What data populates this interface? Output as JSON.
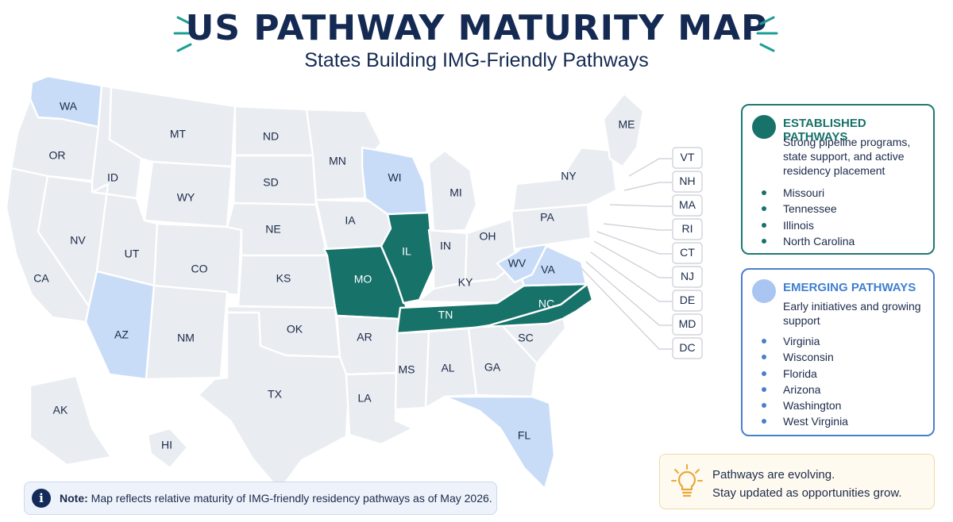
{
  "title": "US PATHWAY MATURITY MAP",
  "subtitle": "States Building IMG-Friendly Pathways",
  "colors": {
    "established": "#17726a",
    "emerging": "#c9dcf7",
    "default": "#e9ecf0",
    "border": "#ffffff"
  },
  "states": {
    "WA": {
      "label": "WA",
      "status": "emerging"
    },
    "OR": {
      "label": "OR",
      "status": "default"
    },
    "CA": {
      "label": "CA",
      "status": "default"
    },
    "NV": {
      "label": "NV",
      "status": "default"
    },
    "ID": {
      "label": "ID",
      "status": "default"
    },
    "MT": {
      "label": "MT",
      "status": "default"
    },
    "WY": {
      "label": "WY",
      "status": "default"
    },
    "UT": {
      "label": "UT",
      "status": "default"
    },
    "AZ": {
      "label": "AZ",
      "status": "emerging"
    },
    "CO": {
      "label": "CO",
      "status": "default"
    },
    "NM": {
      "label": "NM",
      "status": "default"
    },
    "ND": {
      "label": "ND",
      "status": "default"
    },
    "SD": {
      "label": "SD",
      "status": "default"
    },
    "NE": {
      "label": "NE",
      "status": "default"
    },
    "KS": {
      "label": "KS",
      "status": "default"
    },
    "OK": {
      "label": "OK",
      "status": "default"
    },
    "TX": {
      "label": "TX",
      "status": "default"
    },
    "MN": {
      "label": "MN",
      "status": "default"
    },
    "IA": {
      "label": "IA",
      "status": "default"
    },
    "MO": {
      "label": "MO",
      "status": "established"
    },
    "AR": {
      "label": "AR",
      "status": "default"
    },
    "LA": {
      "label": "LA",
      "status": "default"
    },
    "WI": {
      "label": "WI",
      "status": "emerging"
    },
    "IL": {
      "label": "IL",
      "status": "established"
    },
    "MI": {
      "label": "MI",
      "status": "default"
    },
    "IN": {
      "label": "IN",
      "status": "default"
    },
    "OH": {
      "label": "OH",
      "status": "default"
    },
    "KY": {
      "label": "KY",
      "status": "default"
    },
    "TN": {
      "label": "TN",
      "status": "established"
    },
    "MS": {
      "label": "MS",
      "status": "default"
    },
    "AL": {
      "label": "AL",
      "status": "default"
    },
    "GA": {
      "label": "GA",
      "status": "default"
    },
    "FL": {
      "label": "FL",
      "status": "emerging"
    },
    "SC": {
      "label": "SC",
      "status": "default"
    },
    "NC": {
      "label": "NC",
      "status": "established"
    },
    "VA": {
      "label": "VA",
      "status": "emerging"
    },
    "WV": {
      "label": "WV",
      "status": "emerging"
    },
    "PA": {
      "label": "PA",
      "status": "default"
    },
    "NY": {
      "label": "NY",
      "status": "default"
    },
    "ME": {
      "label": "ME",
      "status": "default"
    },
    "AK": {
      "label": "AK",
      "status": "default"
    },
    "HI": {
      "label": "HI",
      "status": "default"
    }
  },
  "small_states": [
    "VT",
    "NH",
    "MA",
    "RI",
    "CT",
    "NJ",
    "DE",
    "MD",
    "DC"
  ],
  "legend": {
    "established": {
      "heading": "ESTABLISHED PATHWAYS",
      "description": "Strong pipeline programs, state support, and active residency placement",
      "items": [
        "Missouri",
        "Tennessee",
        "Illinois",
        "North Carolina"
      ]
    },
    "emerging": {
      "heading": "EMERGING PATHWAYS",
      "description": "Early initiatives and growing support",
      "items": [
        "Virginia",
        "Wisconsin",
        "Florida",
        "Arizona",
        "Washington",
        "West Virginia"
      ]
    }
  },
  "note": {
    "label": "Note:",
    "text": "Map reflects relative maturity of IMG-friendly residency pathways as  of May 2026."
  },
  "tip": {
    "line1": "Pathways are evolving.",
    "line2": "Stay updated as opportunities grow."
  }
}
